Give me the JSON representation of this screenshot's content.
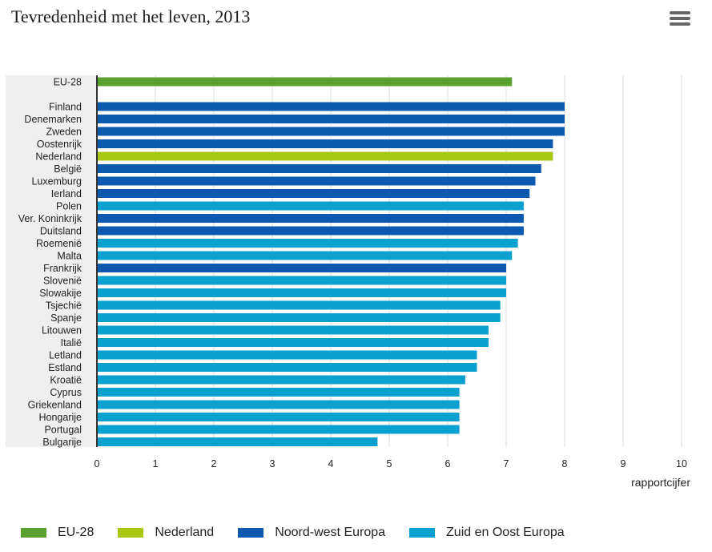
{
  "title": "Tevredenheid met het leven, 2013",
  "menu_icon": "hamburger-menu-icon",
  "chart_data": {
    "type": "bar",
    "orientation": "horizontal",
    "title": "Tevredenheid met het leven, 2013",
    "xlabel": "rapportcijfer",
    "xlim": [
      0,
      10
    ],
    "xticks": [
      "0",
      "1",
      "2",
      "3",
      "4",
      "5",
      "6",
      "7",
      "8",
      "9",
      "10"
    ],
    "grid": true,
    "legend_position": "bottom",
    "categories": [
      "EU-28",
      "Finland",
      "Denemarken",
      "Zweden",
      "Oostenrijk",
      "Nederland",
      "België",
      "Luxemburg",
      "Ierland",
      "Polen",
      "Ver. Koninkrijk",
      "Duitsland",
      "Roemenië",
      "Malta",
      "Frankrijk",
      "Slovenië",
      "Slowakije",
      "Tsjechië",
      "Spanje",
      "Litouwen",
      "Italië",
      "Letland",
      "Estland",
      "Kroatië",
      "Cyprus",
      "Griekenland",
      "Hongarije",
      "Portugal",
      "Bulgarije"
    ],
    "values": [
      7.1,
      8.0,
      8.0,
      8.0,
      7.8,
      7.8,
      7.6,
      7.5,
      7.4,
      7.3,
      7.3,
      7.3,
      7.2,
      7.1,
      7.0,
      7.0,
      7.0,
      6.9,
      6.9,
      6.7,
      6.7,
      6.5,
      6.5,
      6.3,
      6.2,
      6.2,
      6.2,
      6.2,
      4.8
    ],
    "groups": [
      "EU-28",
      "Noord-west Europa",
      "Noord-west Europa",
      "Noord-west Europa",
      "Noord-west Europa",
      "Nederland",
      "Noord-west Europa",
      "Noord-west Europa",
      "Noord-west Europa",
      "Zuid en Oost Europa",
      "Noord-west Europa",
      "Noord-west Europa",
      "Zuid en Oost Europa",
      "Zuid en Oost Europa",
      "Noord-west Europa",
      "Zuid en Oost Europa",
      "Zuid en Oost Europa",
      "Zuid en Oost Europa",
      "Zuid en Oost Europa",
      "Zuid en Oost Europa",
      "Zuid en Oost Europa",
      "Zuid en Oost Europa",
      "Zuid en Oost Europa",
      "Zuid en Oost Europa",
      "Zuid en Oost Europa",
      "Zuid en Oost Europa",
      "Zuid en Oost Europa",
      "Zuid en Oost Europa",
      "Zuid en Oost Europa"
    ],
    "series": [
      {
        "name": "EU-28",
        "color": "#5aa02c"
      },
      {
        "name": "Nederland",
        "color": "#a8c814"
      },
      {
        "name": "Noord-west Europa",
        "color": "#0c59b0"
      },
      {
        "name": "Zuid en Oost Europa",
        "color": "#0aa0cf"
      }
    ]
  }
}
